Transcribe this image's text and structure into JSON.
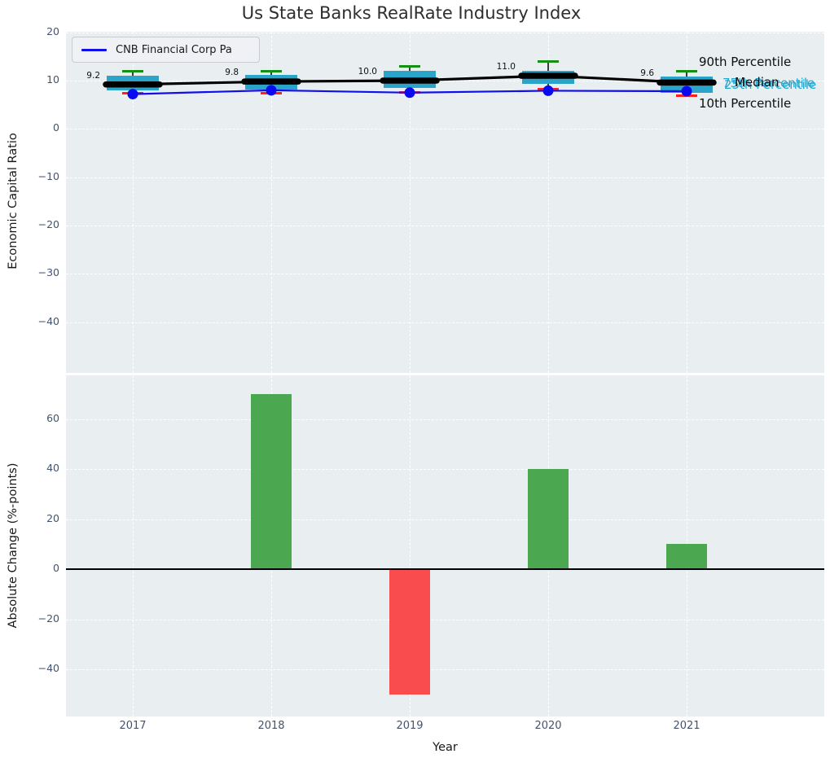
{
  "title": "Us State Banks RealRate Industry Index",
  "legend": {
    "label": "CNB Financial Corp Pa"
  },
  "axis_labels": {
    "top_y": "Economic Capital Ratio",
    "bottom_y": "Absolute Change (%-points)",
    "x": "Year"
  },
  "percentile_annotations": {
    "p90": "90th Percentile",
    "p75": "75th Percentile",
    "p25": "25th Percentile",
    "median": "Median",
    "p10": "10th Percentile"
  },
  "colors": {
    "box": "#2aa4c9",
    "cap_high": "#149114",
    "cap_low": "#ff1f1f",
    "median_line": "#000000",
    "company_line": "#0f0fee",
    "company_dot": "#0a0af0",
    "bar_positive": "#3aa03e",
    "bar_negative": "#fb3a3c",
    "plot_background": "#e9eef1",
    "tick_text": "#44536b"
  },
  "chart_data": [
    {
      "type": "boxplot",
      "title": "Us State Banks RealRate Industry Index",
      "ylabel": "Economic Capital Ratio",
      "categories": [
        "2017",
        "2018",
        "2019",
        "2020",
        "2021"
      ],
      "yticks": [
        20,
        10,
        0,
        -10,
        -20,
        -30,
        -40
      ],
      "ylim": [
        -50.5,
        20.3
      ],
      "grid": true,
      "legend_position": "upper left",
      "boxes": [
        {
          "year": "2017",
          "p10": 7.3,
          "p25": 7.9,
          "median": 9.2,
          "p75": 11.0,
          "p90": 12.0,
          "label": "9.2"
        },
        {
          "year": "2018",
          "p10": 7.4,
          "p25": 8.1,
          "median": 9.8,
          "p75": 11.2,
          "p90": 11.9,
          "label": "9.8"
        },
        {
          "year": "2019",
          "p10": 7.5,
          "p25": 8.5,
          "median": 10.0,
          "p75": 12.1,
          "p90": 13.0,
          "label": "10.0"
        },
        {
          "year": "2020",
          "p10": 8.3,
          "p25": 9.3,
          "median": 11.0,
          "p75": 12.1,
          "p90": 14.0,
          "label": "11.0"
        },
        {
          "year": "2021",
          "p10": 6.8,
          "p25": 7.5,
          "median": 9.6,
          "p75": 10.9,
          "p90": 12.0,
          "label": "9.6"
        }
      ],
      "series": [
        {
          "name": "CNB Financial Corp Pa",
          "values": [
            7.2,
            8.0,
            7.5,
            7.9,
            7.8
          ]
        },
        {
          "name": "Industry Median",
          "values": [
            9.2,
            9.8,
            10.0,
            11.0,
            9.6
          ]
        }
      ]
    },
    {
      "type": "bar",
      "ylabel": "Absolute Change (%-points)",
      "xlabel": "Year",
      "categories": [
        "2017",
        "2018",
        "2019",
        "2020",
        "2021"
      ],
      "values": [
        0,
        70,
        -50,
        40,
        10
      ],
      "yticks": [
        60,
        40,
        20,
        0,
        -20,
        -40
      ],
      "ylim": [
        -58,
        77
      ],
      "grid": true
    }
  ]
}
